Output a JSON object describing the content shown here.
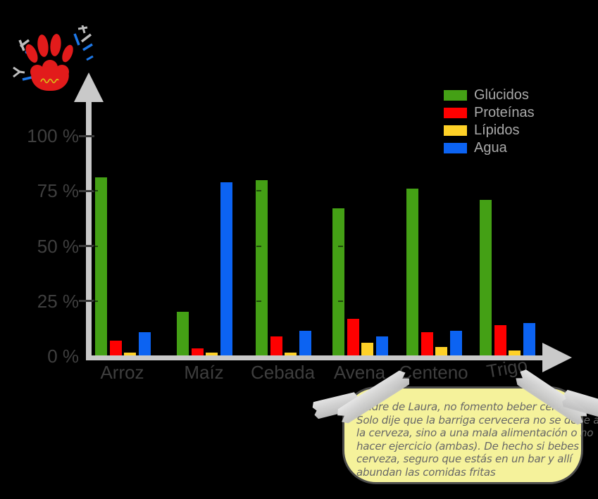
{
  "page": {
    "background": "#000000"
  },
  "chart_data": {
    "type": "bar",
    "title": "",
    "categories": [
      "Arroz",
      "Maíz",
      "Cebada",
      "Avena",
      "Centeno",
      "Trigo"
    ],
    "series": [
      {
        "name": "Glúcidos",
        "color": "#44a015",
        "values": [
          81,
          20,
          80,
          67,
          76,
          71
        ]
      },
      {
        "name": "Proteínas",
        "color": "#ff0000",
        "values": [
          7,
          3.5,
          9,
          17,
          11,
          14
        ]
      },
      {
        "name": "Lípidos",
        "color": "#fed127",
        "values": [
          1.5,
          1.5,
          1.5,
          6,
          4,
          2.5
        ]
      },
      {
        "name": "Agua",
        "color": "#0c63f2",
        "values": [
          11,
          79,
          11.5,
          9,
          11.5,
          15
        ]
      }
    ],
    "y_ticks": [
      {
        "label": "100 %",
        "value": 100
      },
      {
        "label": "75 %",
        "value": 75
      },
      {
        "label": "50 %",
        "value": 50
      },
      {
        "label": "25 %",
        "value": 25
      },
      {
        "label": "0 %",
        "value": 0
      }
    ],
    "ylim": [
      0,
      100
    ],
    "xlabel": "",
    "ylabel": "",
    "legend_position": "top-right",
    "grid": "sparse-dashed",
    "axis_color": "#c9c9c9"
  },
  "speech_bubble": {
    "fill": "#f5f29b",
    "border": "#4c4c4c",
    "lines": [
      "Madre de Laura, no fomento beber cerveza.",
      "Solo dije que la barriga cervecera no se debe a",
      "la cerveza, sino a una mala alimentación o no",
      "hacer ejercicio (ambas). De hecho si bebes",
      "cerveza, seguro que estás en un bar y allí",
      "abundan las comidas fritas"
    ]
  }
}
